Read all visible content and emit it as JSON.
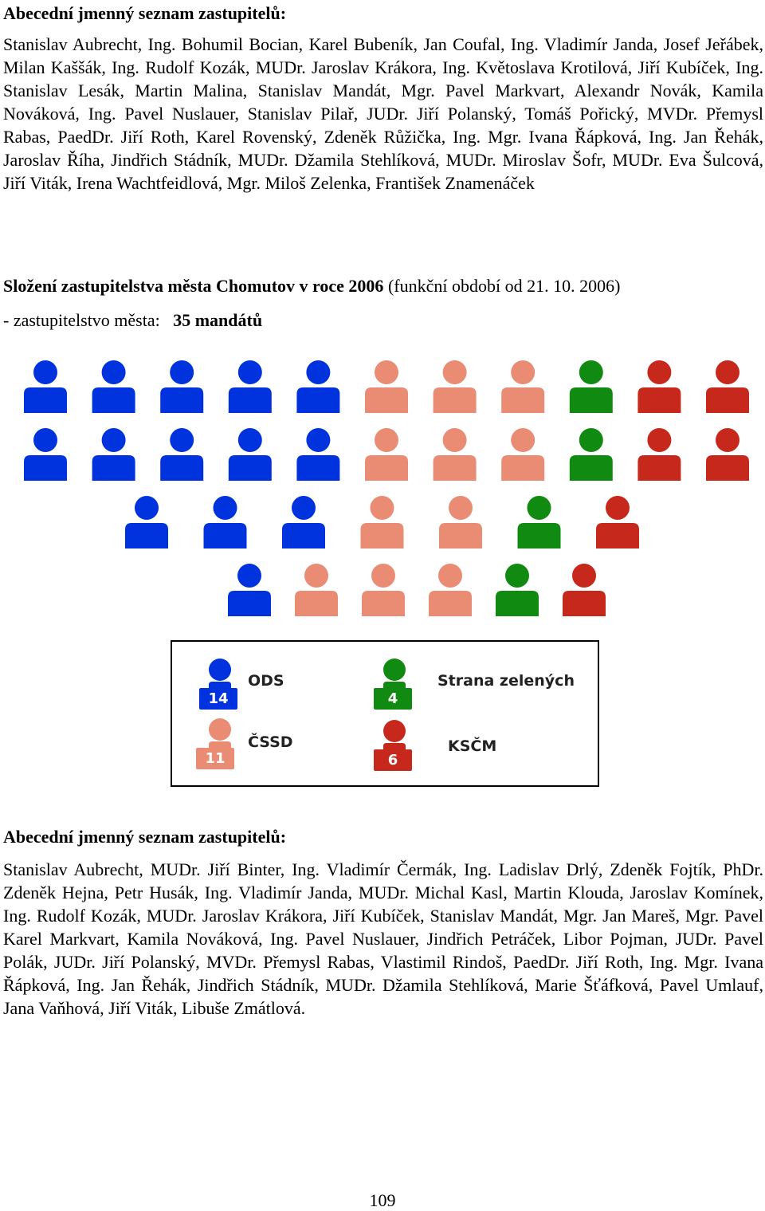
{
  "section1": {
    "heading": "Abecední jmenný seznam zastupitelů:",
    "names": "Stanislav Aubrecht, Ing. Bohumil Bocian, Karel Bubeník, Jan Coufal, Ing. Vladimír Janda, Josef Jeřábek, Milan Kaššák, Ing. Rudolf Kozák, MUDr. Jaroslav Krákora, Ing. Květoslava Krotilová, Jiří Kubíček, Ing. Stanislav Lesák, Martin Malina, Stanislav Mandát, Mgr. Pavel Markvart, Alexandr Novák, Kamila Nováková, Ing. Pavel Nuslauer, Stanislav Pilař, JUDr. Jiří Polanský, Tomáš Pořický, MVDr. Přemysl Rabas, PaedDr. Jiří Roth, Karel Rovenský, Zdeněk Růžička, Ing. Mgr. Ivana Řápková, Ing. Jan Řehák, Jaroslav Říha, Jindřich Stádník, MUDr. Džamila Stehlíková, MUDr. Miroslav Šofr, MUDr. Eva Šulcová, Jiří Viták, Irena Wachtfeidlová, Mgr. Miloš Zelenka, František Znamenáček"
  },
  "composition": {
    "title_bold": "Složení zastupitelstva města Chomutov v roce 2006",
    "title_rest": " (funkční období od 21. 10. 2006)",
    "council_label": "- zastupitelstvo města:   ",
    "council_value": "35 mandátů"
  },
  "parties": [
    {
      "name": "ODS",
      "seats": "14",
      "color": "#0033dd",
      "icon": "person-icon"
    },
    {
      "name": "Strana zelených",
      "seats": "4",
      "color": "#118a11",
      "icon": "person-icon"
    },
    {
      "name": "ČSSD",
      "seats": "11",
      "color": "#ea8c74",
      "icon": "person-icon"
    },
    {
      "name": "KSČM",
      "seats": "6",
      "color": "#c7281c",
      "icon": "person-icon"
    }
  ],
  "seat_rows": [
    [
      "ODS",
      "ODS",
      "ODS",
      "ODS",
      "ODS",
      "ČSSD",
      "ČSSD",
      "ČSSD",
      "Strana zelených",
      "KSČM",
      "KSČM"
    ],
    [
      "ODS",
      "ODS",
      "ODS",
      "ODS",
      "ODS",
      "ČSSD",
      "ČSSD",
      "ČSSD",
      "Strana zelených",
      "KSČM",
      "KSČM"
    ],
    [
      "ODS",
      "ODS",
      "ODS",
      "ČSSD",
      "ČSSD",
      "Strana zelených",
      "KSČM"
    ],
    [
      "ODS",
      "ČSSD",
      "ČSSD",
      "ČSSD",
      "Strana zelených",
      "KSČM"
    ]
  ],
  "section2": {
    "heading": "Abecední jmenný seznam zastupitelů:",
    "names": "Stanislav Aubrecht, MUDr. Jiří Binter, Ing. Vladimír Čermák, Ing. Ladislav Drlý, Zdeněk Fojtík, PhDr. Zdeněk Hejna, Petr Husák, Ing. Vladimír Janda, MUDr. Michal Kasl, Martin Klouda, Jaroslav Komínek, Ing. Rudolf Kozák, MUDr. Jaroslav Krákora, Jiří Kubíček, Stanislav Mandát, Mgr. Jan Mareš, Mgr. Pavel Karel Markvart, Kamila Nováková, Ing. Pavel Nuslauer, Jindřich Petráček, Libor Pojman, JUDr. Pavel Polák, JUDr. Jiří Polanský, MVDr. Přemysl Rabas, Vlastimil Rindoš, PaedDr. Jiří Roth, Ing. Mgr. Ivana Řápková, Ing. Jan Řehák, Jindřich Stádník, MUDr. Džamila Stehlíková, Marie Šťáfková, Pavel Umlauf, Jana Vaňhová, Jiří Viták, Libuše Zmátlová."
  },
  "page_number": "109"
}
